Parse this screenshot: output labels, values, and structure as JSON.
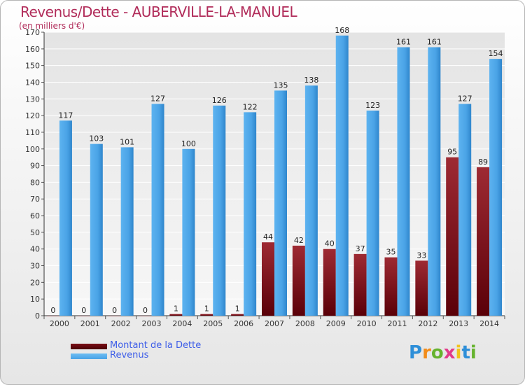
{
  "title": "Revenus/Dette - AUBERVILLE-LA-MANUEL",
  "subtitle": "(en milliers d'€)",
  "colors": {
    "dette": "#7a0f16",
    "revenus": "#4aa3e6",
    "title": "#b12c5a",
    "legend_text": "#3e5ee8"
  },
  "logo": {
    "letters": [
      {
        "char": "P",
        "color": "#2e8fd8"
      },
      {
        "char": "r",
        "color": "#f28c1a"
      },
      {
        "char": "o",
        "color": "#66b32e"
      },
      {
        "char": "x",
        "color": "#e23a8a"
      },
      {
        "char": "i",
        "color": "#f2c31a"
      },
      {
        "char": "t",
        "color": "#2e8fd8"
      },
      {
        "char": "i",
        "color": "#66b32e"
      }
    ]
  },
  "chart_data": {
    "type": "bar",
    "title": "Revenus/Dette - AUBERVILLE-LA-MANUEL",
    "subtitle": "(en milliers d'€)",
    "categories": [
      "2000",
      "2001",
      "2002",
      "2003",
      "2004",
      "2005",
      "2006",
      "2007",
      "2008",
      "2009",
      "2010",
      "2011",
      "2012",
      "2013",
      "2014"
    ],
    "series": [
      {
        "name": "Montant de la Dette",
        "values": [
          0,
          0,
          0,
          0,
          1,
          1,
          1,
          44,
          42,
          40,
          37,
          35,
          33,
          95,
          89
        ]
      },
      {
        "name": "Revenus",
        "values": [
          117,
          103,
          101,
          127,
          100,
          126,
          122,
          135,
          138,
          168,
          123,
          161,
          161,
          127,
          154
        ]
      }
    ],
    "ylim": [
      0,
      170
    ],
    "yticks": [
      0,
      10,
      20,
      30,
      40,
      50,
      60,
      70,
      80,
      90,
      100,
      110,
      120,
      130,
      140,
      150,
      160,
      170
    ],
    "grid": true,
    "legend": "bottom-left"
  }
}
